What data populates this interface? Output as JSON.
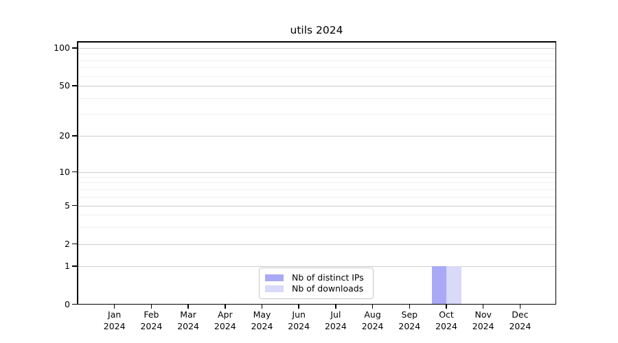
{
  "figure": {
    "title": "utils 2024"
  },
  "chart_data": {
    "type": "bar",
    "title": "utils 2024",
    "categories": [
      "Jan",
      "Feb",
      "Mar",
      "Apr",
      "May",
      "Jun",
      "Jul",
      "Aug",
      "Sep",
      "Oct",
      "Nov",
      "Dec"
    ],
    "category_year": "2024",
    "series": [
      {
        "name": "Nb of distinct IPs",
        "color": "#a9a9f5",
        "values": [
          0,
          0,
          0,
          0,
          0,
          0,
          0,
          0,
          0,
          1,
          0,
          0
        ]
      },
      {
        "name": "Nb of downloads",
        "color": "#d9d9f9",
        "values": [
          0,
          0,
          0,
          0,
          0,
          0,
          0,
          0,
          0,
          1,
          0,
          0
        ]
      }
    ],
    "xlabel": "",
    "ylabel": "",
    "y_axis": {
      "scale": "symlog",
      "major_ticks": [
        0,
        1,
        2,
        5,
        10,
        20,
        50,
        100
      ],
      "minor_ticks": [
        3,
        4,
        6,
        7,
        8,
        9,
        30,
        40,
        60,
        70,
        80,
        90
      ],
      "ylim": [
        0,
        110
      ]
    },
    "legend": {
      "location": "lower center",
      "entries": [
        "Nb of distinct IPs",
        "Nb of downloads"
      ]
    },
    "grid": {
      "major": true,
      "minor": true
    }
  },
  "colors": {
    "background": "#ffffff",
    "spine": "#000000",
    "major_grid": "#cbcbcb",
    "minor_grid": "#efefef",
    "text": "#000000"
  }
}
